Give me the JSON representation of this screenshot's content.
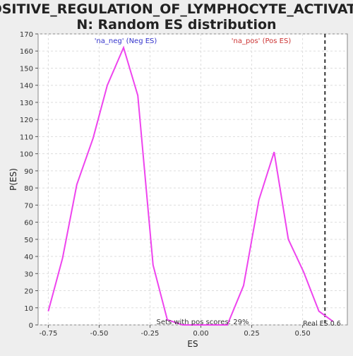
{
  "chart_data": {
    "type": "line",
    "title_line1": "POSITIVE_REGULATION_OF_LYMPHOCYTE_ACTIVATIO",
    "title_line2": "N: Random ES distribution",
    "xlabel": "ES",
    "ylabel": "P(ES)",
    "xlim": [
      -0.8,
      0.72
    ],
    "ylim": [
      0,
      170
    ],
    "x_ticks": [
      -0.75,
      -0.5,
      -0.25,
      0.0,
      0.25,
      0.5
    ],
    "x_tick_labels": [
      "-0.75",
      "-0.50",
      "-0.25",
      "0.00",
      "0.25",
      "0.50"
    ],
    "y_ticks": [
      0,
      10,
      20,
      30,
      40,
      50,
      60,
      70,
      80,
      90,
      100,
      110,
      120,
      130,
      140,
      150,
      160,
      170
    ],
    "grid": true,
    "series": [
      {
        "color": "#ee44ee",
        "x": [
          -0.75,
          -0.68,
          -0.61,
          -0.53,
          -0.46,
          -0.38,
          -0.31,
          -0.235,
          -0.165,
          -0.09,
          -0.02,
          0.05,
          0.13,
          0.21,
          0.285,
          0.36,
          0.43,
          0.505,
          0.58,
          0.65
        ],
        "y": [
          8,
          39,
          82,
          109,
          140,
          162,
          134,
          35,
          3,
          0,
          0,
          0,
          0,
          23,
          73,
          101,
          50,
          31,
          8,
          2
        ]
      }
    ],
    "annotations": {
      "neg_label": "'na_neg' (Neg ES)",
      "neg_color": "#3333cc",
      "pos_label": "'na_pos' (Pos ES)",
      "pos_color": "#cc3333",
      "sets_text": "Sets with pos scores: 29%",
      "real_es_text": "Real ES 0.6",
      "real_es_value": 0.61
    }
  }
}
